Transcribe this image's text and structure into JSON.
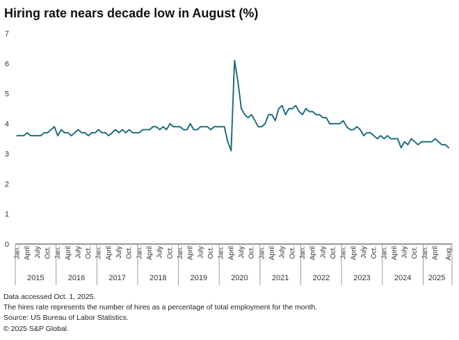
{
  "chart_data": {
    "type": "line",
    "title": "Hiring rate nears decade low in August (%)",
    "xlabel": "",
    "ylabel": "",
    "ylim": [
      0,
      7
    ],
    "yticks": [
      "0",
      "1",
      "2",
      "3",
      "4",
      "5",
      "6",
      "7"
    ],
    "grid": false,
    "line_color": "#1f6f7e",
    "month_labels": [
      "Jan.",
      "April",
      "July",
      "Oct."
    ],
    "month_labels_2025": [
      "Jan.",
      "April",
      "Aug."
    ],
    "years": [
      "2015",
      "2016",
      "2017",
      "2018",
      "2019",
      "2020",
      "2021",
      "2022",
      "2023",
      "2024",
      "2025"
    ],
    "start": "2015-01",
    "end": "2025-08",
    "series": [
      {
        "name": "Hires rate",
        "values": [
          3.6,
          3.6,
          3.6,
          3.7,
          3.6,
          3.6,
          3.6,
          3.6,
          3.7,
          3.7,
          3.8,
          3.9,
          3.6,
          3.8,
          3.7,
          3.7,
          3.6,
          3.7,
          3.8,
          3.7,
          3.7,
          3.6,
          3.7,
          3.7,
          3.8,
          3.7,
          3.7,
          3.6,
          3.7,
          3.8,
          3.7,
          3.8,
          3.7,
          3.8,
          3.7,
          3.7,
          3.7,
          3.8,
          3.8,
          3.8,
          3.9,
          3.9,
          3.8,
          3.9,
          3.8,
          4.0,
          3.9,
          3.9,
          3.9,
          3.8,
          3.8,
          4.0,
          3.8,
          3.8,
          3.9,
          3.9,
          3.9,
          3.8,
          3.9,
          3.9,
          3.9,
          3.9,
          3.4,
          3.1,
          6.1,
          5.4,
          4.5,
          4.3,
          4.2,
          4.3,
          4.1,
          3.9,
          3.9,
          4.0,
          4.3,
          4.3,
          4.1,
          4.5,
          4.6,
          4.3,
          4.5,
          4.5,
          4.6,
          4.4,
          4.3,
          4.5,
          4.4,
          4.4,
          4.3,
          4.3,
          4.2,
          4.2,
          4.0,
          4.0,
          4.0,
          4.0,
          4.1,
          3.9,
          3.8,
          3.8,
          3.9,
          3.8,
          3.6,
          3.7,
          3.7,
          3.6,
          3.5,
          3.6,
          3.5,
          3.6,
          3.5,
          3.5,
          3.5,
          3.2,
          3.4,
          3.3,
          3.5,
          3.4,
          3.3,
          3.4,
          3.4,
          3.4,
          3.4,
          3.5,
          3.4,
          3.3,
          3.3,
          3.2
        ]
      }
    ]
  },
  "notes": {
    "accessed": "Data accessed Oct. 1, 2025.",
    "definition": "The hires rate represents the number of hires as a percentage of total employment for the month.",
    "source": "Source: US Bureau of Labor Statistics.",
    "copyright": "© 2025 S&P Global."
  }
}
